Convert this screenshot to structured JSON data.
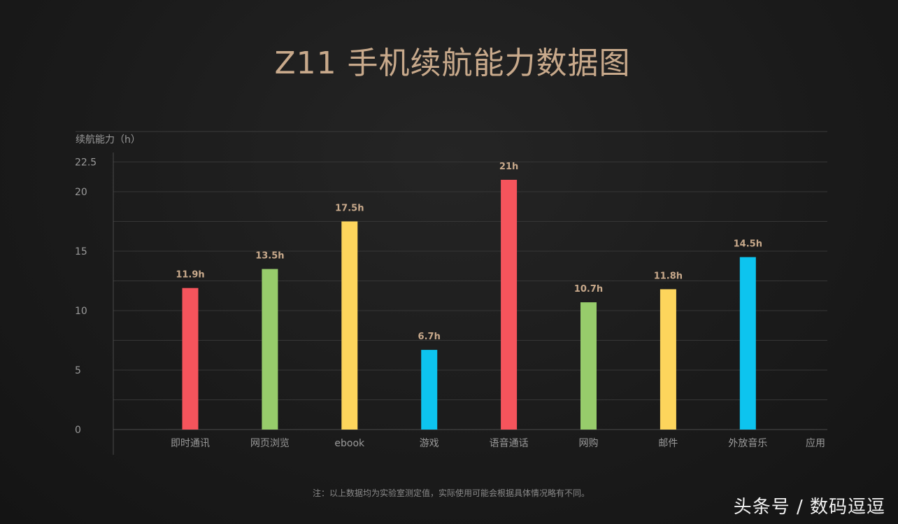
{
  "title": "Z11 手机续航能力数据图",
  "note": "注：以上数据均为实验室测定值，实际使用可能会根据具体情况略有不同。",
  "watermark": "头条号 / 数码逗逗",
  "chart_data": {
    "type": "bar",
    "ylabel": "续航能力（h）",
    "xlabel": "应用",
    "ylim": [
      0,
      22.5
    ],
    "yticks": [
      0,
      5,
      10,
      15,
      20,
      22.5
    ],
    "grid": true,
    "categories": [
      "即时通讯",
      "网页浏览",
      "ebook",
      "游戏",
      "语音通话",
      "网购",
      "邮件",
      "外放音乐"
    ],
    "values": [
      11.9,
      13.5,
      17.5,
      6.7,
      21,
      10.7,
      11.8,
      14.5
    ],
    "value_labels": [
      "11.9h",
      "13.5h",
      "17.5h",
      "6.7h",
      "21h",
      "10.7h",
      "11.8h",
      "14.5h"
    ],
    "bar_colors": [
      "#f5545c",
      "#97cc6b",
      "#fdd55c",
      "#0dc4ef",
      "#f5545c",
      "#97cc6b",
      "#fdd55c",
      "#0dc4ef"
    ]
  }
}
